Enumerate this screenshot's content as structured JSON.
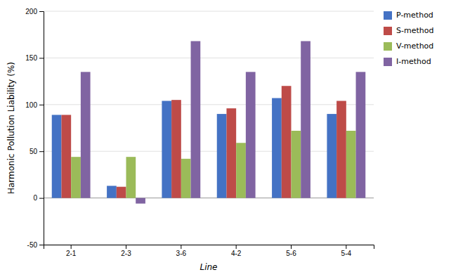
{
  "chart_data": {
    "type": "bar",
    "categories": [
      "2-1",
      "2-3",
      "3-6",
      "4-2",
      "5-6",
      "5-4"
    ],
    "series": [
      {
        "name": "P-method",
        "color": "#4472C4",
        "values": [
          89,
          13,
          104,
          90,
          107,
          90
        ]
      },
      {
        "name": "S-method",
        "color": "#BE4B48",
        "values": [
          89,
          12,
          105,
          96,
          120,
          104
        ]
      },
      {
        "name": "V-method",
        "color": "#9BBB59",
        "values": [
          44,
          44,
          42,
          59,
          72,
          72
        ]
      },
      {
        "name": "I-method",
        "color": "#8064A2",
        "values": [
          135,
          -6,
          168,
          135,
          168,
          135
        ]
      }
    ],
    "ylabel": "Harmonic Pollution Liability (%)",
    "xlabel": "Line",
    "ylim": [
      -50,
      200
    ],
    "yticks": [
      -50,
      0,
      50,
      100,
      150,
      200
    ],
    "grid": true,
    "legend": "right"
  }
}
